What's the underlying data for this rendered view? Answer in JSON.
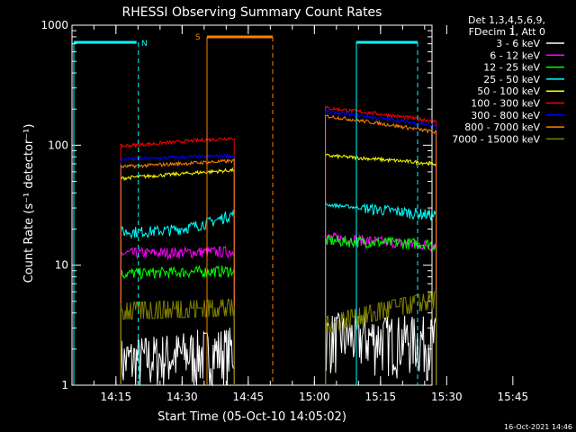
{
  "chart_data": {
    "type": "line",
    "title": "RHESSI Observing Summary Count Rates",
    "xlabel": "Start Time (05-Oct-10 14:05:02)",
    "ylabel": "Count Rate (s⁻¹ detector⁻¹)",
    "y_scale": "log",
    "ylim": [
      1,
      1000
    ],
    "x_ticks": [
      "14:15",
      "14:30",
      "14:45",
      "15:00",
      "15:15",
      "15:30",
      "15:45"
    ],
    "y_ticks": [
      "1",
      "10",
      "100",
      "1000"
    ],
    "legend_header": [
      "Det 1,3,4,5,6,9,",
      "FDecim 1, Att 0"
    ],
    "legend_position": "right",
    "timestamp": "16-Oct-2021 14:46",
    "annotations": [
      {
        "label": "N",
        "color": "#00ffff"
      },
      {
        "label": "S",
        "color": "#ff8000"
      }
    ],
    "series": [
      {
        "name": "3 - 6 keV",
        "color": "#ffffff",
        "seg1": [
          1.6,
          2.0
        ],
        "seg2": [
          2.6,
          2.4
        ]
      },
      {
        "name": "6 - 12 keV",
        "color": "#ff00ff",
        "seg1": [
          12.5,
          13.0
        ],
        "seg2": [
          17.0,
          14.5
        ]
      },
      {
        "name": "12 - 25 keV",
        "color": "#00ff00",
        "seg1": [
          8.5,
          9.0
        ],
        "seg2": [
          16.0,
          15.0
        ]
      },
      {
        "name": "25 - 50 keV",
        "color": "#00ffff",
        "seg1": [
          19.0,
          27.0
        ],
        "seg2": [
          32.0,
          26.0
        ]
      },
      {
        "name": "50 - 100 keV",
        "color": "#ffff00",
        "seg1": [
          53.0,
          62.0
        ],
        "seg2": [
          82.0,
          70.0
        ]
      },
      {
        "name": "100 - 300 keV",
        "color": "#ff0000",
        "seg1": [
          98.0,
          115.0
        ],
        "seg2": [
          205.0,
          158.0
        ]
      },
      {
        "name": "300 - 800 keV",
        "color": "#0000ff",
        "seg1": [
          76.0,
          82.0
        ],
        "seg2": [
          190.0,
          145.0
        ]
      },
      {
        "name": "800 - 7000 keV",
        "color": "#ff8000",
        "seg1": [
          66.0,
          74.0
        ],
        "seg2": [
          175.0,
          128.0
        ]
      },
      {
        "name": "7000 - 15000 keV",
        "color": "#808000",
        "seg1": [
          4.2,
          4.5
        ],
        "seg2": [
          3.2,
          5.2
        ]
      }
    ]
  }
}
